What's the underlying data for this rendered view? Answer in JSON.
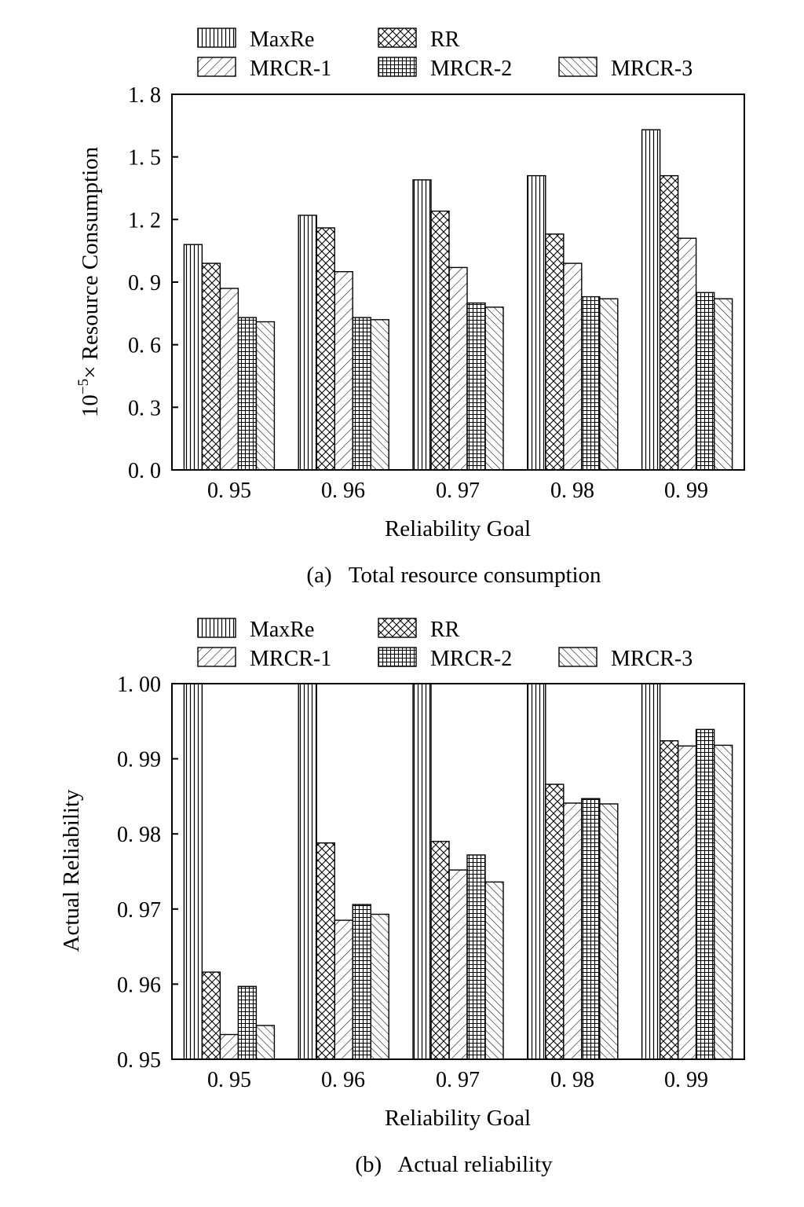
{
  "colors": {
    "ink": "#000000",
    "paper": "#ffffff"
  },
  "chart_data": [
    {
      "id": "a",
      "type": "bar",
      "caption": "(a)   Total resource consumption",
      "xlabel": "Reliability Goal",
      "ylabel_prefix": "10",
      "ylabel_exponent": "−5",
      "ylabel_rest": "× Resource Consumption",
      "categories": [
        "0. 95",
        "0. 96",
        "0. 97",
        "0. 98",
        "0. 99"
      ],
      "ylim": [
        0.0,
        1.8
      ],
      "yticks": [
        0.0,
        0.3,
        0.6,
        0.9,
        1.2,
        1.5,
        1.8
      ],
      "ytick_labels": [
        "0. 0",
        "0. 3",
        "0. 6",
        "0. 9",
        "1. 2",
        "1. 5",
        "1. 8"
      ],
      "legend": [
        "MaxRe",
        "RR",
        "MRCR-1",
        "MRCR-2",
        "MRCR-3"
      ],
      "series": [
        {
          "name": "MaxRe",
          "pattern": "vertical",
          "values": [
            1.08,
            1.22,
            1.39,
            1.41,
            1.63
          ]
        },
        {
          "name": "RR",
          "pattern": "crosshatch",
          "values": [
            0.99,
            1.16,
            1.24,
            1.13,
            1.41
          ]
        },
        {
          "name": "MRCR-1",
          "pattern": "diag-right",
          "values": [
            0.87,
            0.95,
            0.97,
            0.99,
            1.11
          ]
        },
        {
          "name": "MRCR-2",
          "pattern": "grid",
          "values": [
            0.73,
            0.73,
            0.8,
            0.83,
            0.85
          ]
        },
        {
          "name": "MRCR-3",
          "pattern": "diag-left",
          "values": [
            0.71,
            0.72,
            0.78,
            0.82,
            0.82
          ]
        }
      ]
    },
    {
      "id": "b",
      "type": "bar",
      "caption": "(b)   Actual reliability",
      "xlabel": "Reliability Goal",
      "ylabel": "Actual Reliability",
      "categories": [
        "0. 95",
        "0. 96",
        "0. 97",
        "0. 98",
        "0. 99"
      ],
      "ylim": [
        0.95,
        1.0
      ],
      "yticks": [
        0.95,
        0.96,
        0.97,
        0.98,
        0.99,
        1.0
      ],
      "ytick_labels": [
        "0. 95",
        "0. 96",
        "0. 97",
        "0. 98",
        "0. 99",
        "1. 00"
      ],
      "legend": [
        "MaxRe",
        "RR",
        "MRCR-1",
        "MRCR-2",
        "MRCR-3"
      ],
      "series": [
        {
          "name": "MaxRe",
          "pattern": "vertical",
          "values": [
            1.0,
            1.0,
            1.0,
            1.0,
            1.0
          ]
        },
        {
          "name": "RR",
          "pattern": "crosshatch",
          "values": [
            0.9616,
            0.9788,
            0.979,
            0.9866,
            0.9924
          ]
        },
        {
          "name": "MRCR-1",
          "pattern": "diag-right",
          "values": [
            0.9533,
            0.9685,
            0.9752,
            0.9841,
            0.9917
          ]
        },
        {
          "name": "MRCR-2",
          "pattern": "grid",
          "values": [
            0.9597,
            0.9706,
            0.9772,
            0.9847,
            0.9939
          ]
        },
        {
          "name": "MRCR-3",
          "pattern": "diag-left",
          "values": [
            0.9545,
            0.9693,
            0.9736,
            0.984,
            0.9918
          ]
        }
      ]
    }
  ]
}
